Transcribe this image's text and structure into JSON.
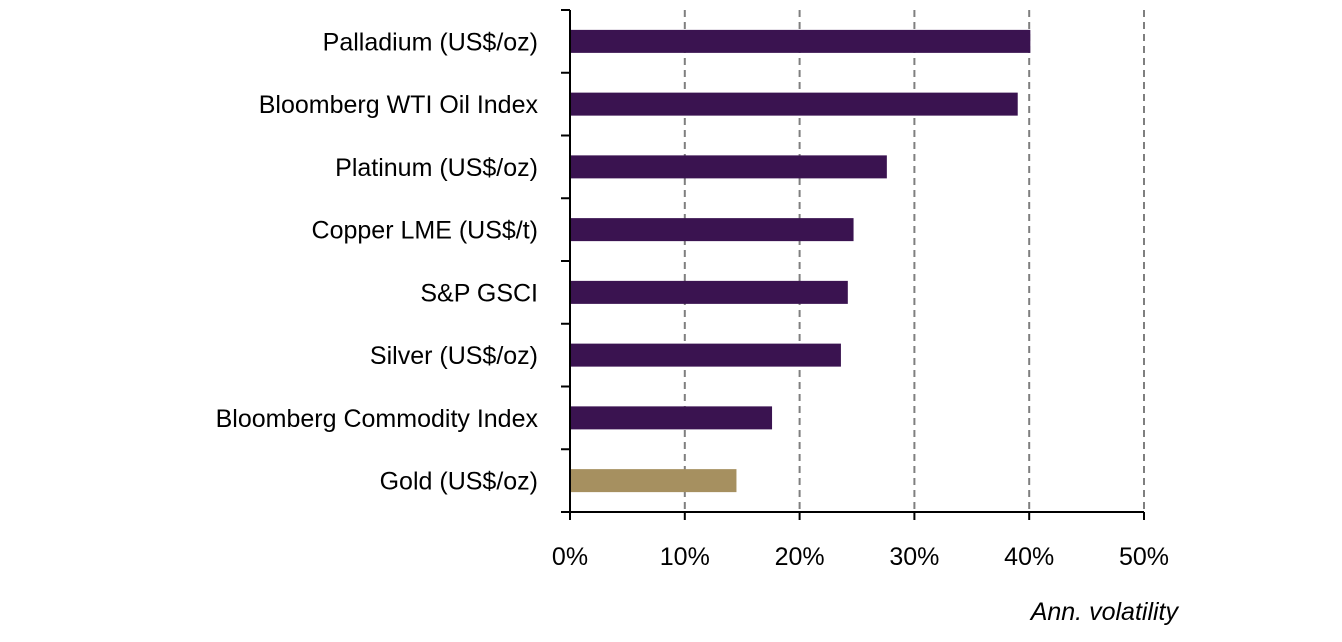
{
  "chart_data": {
    "type": "bar",
    "orientation": "horizontal",
    "categories": [
      "Palladium (US$/oz)",
      "Bloomberg WTI Oil Index",
      "Platinum (US$/oz)",
      "Copper LME (US$/t)",
      "S&P GSCI",
      "Silver (US$/oz)",
      "Bloomberg Commodity Index",
      "Gold (US$/oz)"
    ],
    "values": [
      40.1,
      39.0,
      27.6,
      24.7,
      24.2,
      23.6,
      17.6,
      14.5
    ],
    "bar_colors": [
      "#3a1350",
      "#3a1350",
      "#3a1350",
      "#3a1350",
      "#3a1350",
      "#3a1350",
      "#3a1350",
      "#a69060"
    ],
    "xlabel": "Ann. volatility",
    "xlim": [
      0,
      50
    ],
    "x_ticks": [
      0,
      10,
      20,
      30,
      40,
      50
    ],
    "x_tick_labels": [
      "0%",
      "10%",
      "20%",
      "30%",
      "40%",
      "50%"
    ],
    "grid": "vertical dashed",
    "legend": "none"
  }
}
